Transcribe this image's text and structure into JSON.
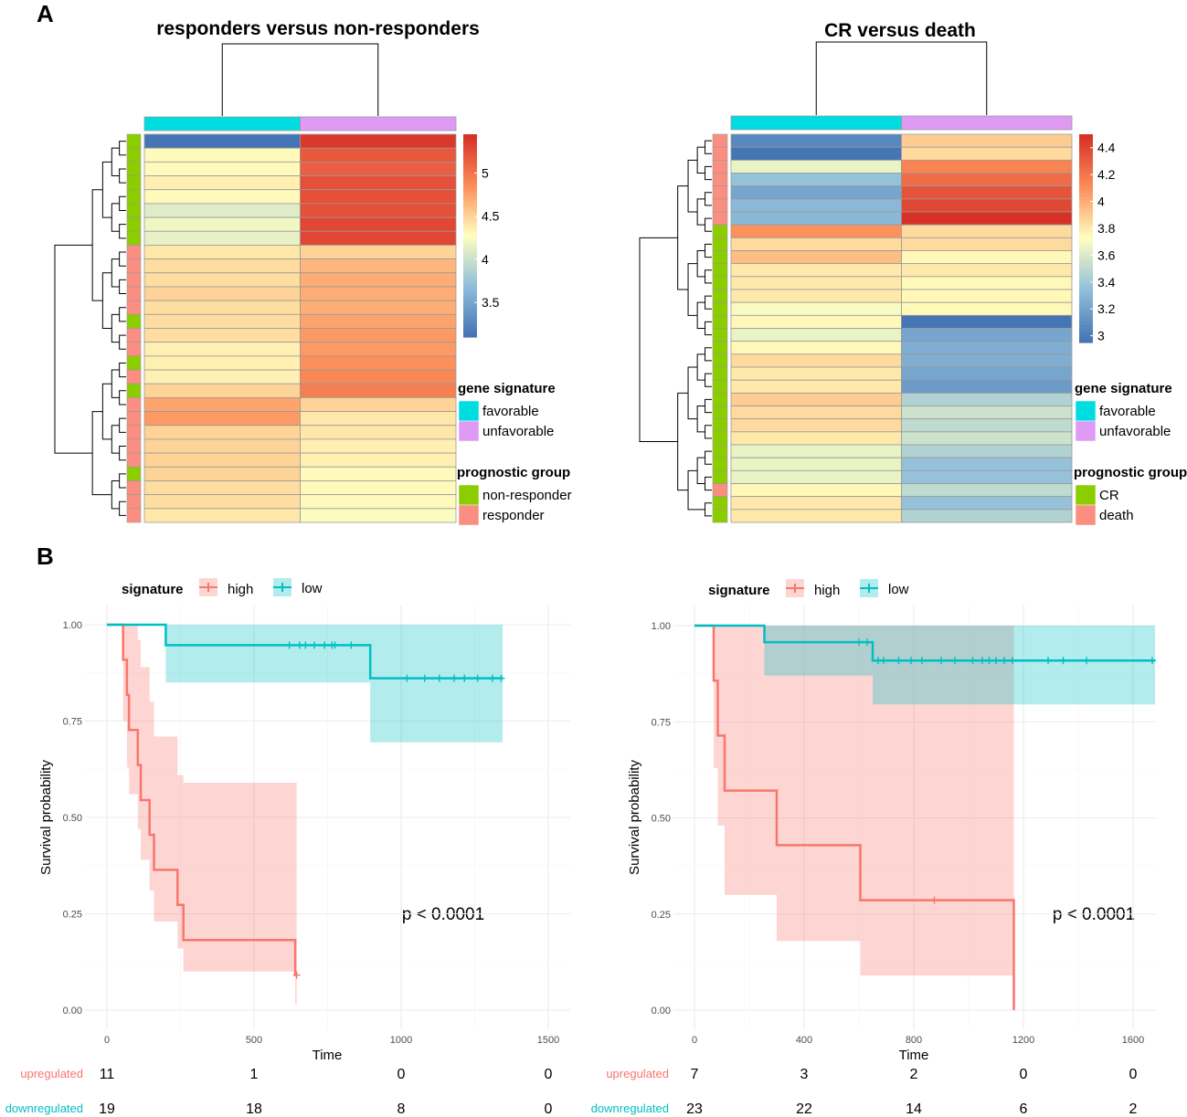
{
  "panel_labels": {
    "a": "A",
    "b": "B"
  },
  "colors": {
    "favorable": "#00dde0",
    "unfavorable": "#df9bf4",
    "non_responder": "#8ccd00",
    "responder": "#fa8e80",
    "cr": "#8ccd00",
    "death": "#fa8e80",
    "km_high": "#f8766d",
    "km_low": "#00bfc4",
    "upregulated": "#f8766d",
    "downregulated": "#00bfc4"
  },
  "heatmaps": [
    {
      "title": "responders versus non-responders",
      "columns": [
        "favorable",
        "unfavorable"
      ],
      "scale": {
        "min": 3.1,
        "max": 5.45,
        "ticks": [
          "5",
          "4.5",
          "4",
          "3.5"
        ],
        "tick_values": [
          5,
          4.5,
          4,
          3.5
        ]
      },
      "rows": [
        {
          "group": "non-responder",
          "values": [
            3.1,
            5.4
          ]
        },
        {
          "group": "non-responder",
          "values": [
            4.3,
            5.2
          ]
        },
        {
          "group": "non-responder",
          "values": [
            4.3,
            5.15
          ]
        },
        {
          "group": "non-responder",
          "values": [
            4.35,
            5.25
          ]
        },
        {
          "group": "non-responder",
          "values": [
            4.3,
            5.25
          ]
        },
        {
          "group": "non-responder",
          "values": [
            4.1,
            5.25
          ]
        },
        {
          "group": "non-responder",
          "values": [
            4.2,
            5.3
          ]
        },
        {
          "group": "non-responder",
          "values": [
            4.15,
            5.3
          ]
        },
        {
          "group": "responder",
          "values": [
            4.4,
            4.5
          ]
        },
        {
          "group": "responder",
          "values": [
            4.45,
            4.65
          ]
        },
        {
          "group": "responder",
          "values": [
            4.45,
            4.7
          ]
        },
        {
          "group": "responder",
          "values": [
            4.5,
            4.7
          ]
        },
        {
          "group": "responder",
          "values": [
            4.45,
            4.7
          ]
        },
        {
          "group": "non-responder",
          "values": [
            4.45,
            4.75
          ]
        },
        {
          "group": "responder",
          "values": [
            4.45,
            4.8
          ]
        },
        {
          "group": "responder",
          "values": [
            4.35,
            4.8
          ]
        },
        {
          "group": "non-responder",
          "values": [
            4.35,
            4.85
          ]
        },
        {
          "group": "responder",
          "values": [
            4.35,
            4.9
          ]
        },
        {
          "group": "non-responder",
          "values": [
            4.5,
            4.95
          ]
        },
        {
          "group": "responder",
          "values": [
            4.75,
            4.5
          ]
        },
        {
          "group": "responder",
          "values": [
            4.8,
            4.4
          ]
        },
        {
          "group": "responder",
          "values": [
            4.5,
            4.4
          ]
        },
        {
          "group": "responder",
          "values": [
            4.5,
            4.35
          ]
        },
        {
          "group": "responder",
          "values": [
            4.5,
            4.35
          ]
        },
        {
          "group": "non-responder",
          "values": [
            4.5,
            4.3
          ]
        },
        {
          "group": "responder",
          "values": [
            4.45,
            4.3
          ]
        },
        {
          "group": "responder",
          "values": [
            4.45,
            4.3
          ]
        },
        {
          "group": "responder",
          "values": [
            4.4,
            4.25
          ]
        }
      ],
      "legend": {
        "gene_title": "gene signature",
        "gene_items": [
          "favorable",
          "unfavorable"
        ],
        "group_title": "prognostic group",
        "group_items": [
          "non-responder",
          "responder"
        ]
      }
    },
    {
      "title": "CR versus death",
      "columns": [
        "favorable",
        "unfavorable"
      ],
      "scale": {
        "min": 2.95,
        "max": 4.5,
        "ticks": [
          "4.4",
          "4.2",
          "4",
          "3.8",
          "3.6",
          "3.4",
          "3.2",
          "3"
        ],
        "tick_values": [
          4.4,
          4.2,
          4.0,
          3.8,
          3.6,
          3.4,
          3.2,
          3.0
        ]
      },
      "rows": [
        {
          "group": "death",
          "values": [
            3.05,
            3.9
          ]
        },
        {
          "group": "death",
          "values": [
            2.95,
            3.85
          ]
        },
        {
          "group": "death",
          "values": [
            3.65,
            4.15
          ]
        },
        {
          "group": "death",
          "values": [
            3.35,
            4.25
          ]
        },
        {
          "group": "death",
          "values": [
            3.2,
            4.35
          ]
        },
        {
          "group": "death",
          "values": [
            3.3,
            4.4
          ]
        },
        {
          "group": "death",
          "values": [
            3.3,
            4.5
          ]
        },
        {
          "group": "CR",
          "values": [
            4.1,
            3.85
          ]
        },
        {
          "group": "CR",
          "values": [
            3.85,
            3.85
          ]
        },
        {
          "group": "CR",
          "values": [
            3.95,
            3.75
          ]
        },
        {
          "group": "CR",
          "values": [
            3.8,
            3.8
          ]
        },
        {
          "group": "CR",
          "values": [
            3.8,
            3.75
          ]
        },
        {
          "group": "CR",
          "values": [
            3.8,
            3.75
          ]
        },
        {
          "group": "CR",
          "values": [
            3.7,
            3.75
          ]
        },
        {
          "group": "CR",
          "values": [
            3.75,
            2.95
          ]
        },
        {
          "group": "CR",
          "values": [
            3.65,
            3.2
          ]
        },
        {
          "group": "CR",
          "values": [
            3.75,
            3.25
          ]
        },
        {
          "group": "CR",
          "values": [
            3.85,
            3.25
          ]
        },
        {
          "group": "CR",
          "values": [
            3.8,
            3.2
          ]
        },
        {
          "group": "CR",
          "values": [
            3.8,
            3.15
          ]
        },
        {
          "group": "CR",
          "values": [
            3.9,
            3.45
          ]
        },
        {
          "group": "CR",
          "values": [
            3.85,
            3.55
          ]
        },
        {
          "group": "CR",
          "values": [
            3.85,
            3.5
          ]
        },
        {
          "group": "CR",
          "values": [
            3.8,
            3.55
          ]
        },
        {
          "group": "CR",
          "values": [
            3.65,
            3.45
          ]
        },
        {
          "group": "CR",
          "values": [
            3.65,
            3.35
          ]
        },
        {
          "group": "CR",
          "values": [
            3.65,
            3.35
          ]
        },
        {
          "group": "death",
          "values": [
            3.75,
            3.5
          ]
        },
        {
          "group": "CR",
          "values": [
            3.8,
            3.35
          ]
        },
        {
          "group": "CR",
          "values": [
            3.8,
            3.45
          ]
        }
      ],
      "legend": {
        "gene_title": "gene signature",
        "gene_items": [
          "favorable",
          "unfavorable"
        ],
        "group_title": "prognostic group",
        "group_items": [
          "CR",
          "death"
        ]
      }
    }
  ],
  "chart_data": [
    {
      "type": "line",
      "title": "",
      "xlabel": "Time",
      "ylabel": "Survival probability",
      "xlim": [
        0,
        1575
      ],
      "ylim": [
        0,
        1
      ],
      "x_ticks": [
        0,
        500,
        1000,
        1500
      ],
      "y_ticks": [
        "0.00",
        "0.25",
        "0.50",
        "0.75",
        "1.00"
      ],
      "y_tick_values": [
        0,
        0.25,
        0.5,
        0.75,
        1
      ],
      "legend_title": "signature",
      "legend_items": [
        "high",
        "low"
      ],
      "p_value": "p < 0.0001",
      "series": [
        {
          "name": "high",
          "x": [
            0,
            55,
            68,
            75,
            105,
            115,
            145,
            160,
            240,
            260,
            640
          ],
          "y": [
            1,
            0.909,
            0.818,
            0.727,
            0.636,
            0.545,
            0.455,
            0.364,
            0.273,
            0.182,
            0.091
          ],
          "upper": [
            1,
            1,
            1,
            1,
            0.96,
            0.89,
            0.8,
            0.71,
            0.61,
            0.59,
            0.59
          ],
          "lower": [
            1,
            0.75,
            0.63,
            0.56,
            0.47,
            0.39,
            0.31,
            0.23,
            0.16,
            0.1,
            0.015
          ],
          "censor_x": [
            645
          ],
          "censor_y": [
            0.091
          ]
        },
        {
          "name": "low",
          "x": [
            0,
            200,
            895,
            1345
          ],
          "y": [
            1,
            0.947,
            0.861,
            0.861
          ],
          "upper": [
            1,
            1,
            1,
            1
          ],
          "lower": [
            1,
            0.85,
            0.695,
            0.695
          ],
          "censor_x": [
            620,
            655,
            675,
            705,
            740,
            765,
            775,
            830,
            1020,
            1080,
            1130,
            1180,
            1215,
            1260,
            1310,
            1340
          ],
          "censor_y": [
            0.947,
            0.947,
            0.947,
            0.947,
            0.947,
            0.947,
            0.947,
            0.947,
            0.861,
            0.861,
            0.861,
            0.861,
            0.861,
            0.861,
            0.861,
            0.861
          ]
        }
      ],
      "risk_table": {
        "rows": [
          "upregulated",
          "downregulated"
        ],
        "times": [
          0,
          500,
          1000,
          1500
        ],
        "values": [
          [
            "11",
            "1",
            "0",
            "0"
          ],
          [
            "19",
            "18",
            "8",
            "0"
          ]
        ]
      }
    },
    {
      "type": "line",
      "title": "",
      "xlabel": "Time",
      "ylabel": "Survival probability",
      "xlim": [
        0,
        1680
      ],
      "ylim": [
        0,
        1
      ],
      "x_ticks": [
        0,
        400,
        800,
        1200,
        1600
      ],
      "y_ticks": [
        "0.00",
        "0.25",
        "0.50",
        "0.75",
        "1.00"
      ],
      "y_tick_values": [
        0,
        0.25,
        0.5,
        0.75,
        1
      ],
      "legend_title": "signature",
      "legend_items": [
        "high",
        "low"
      ],
      "p_value": "p < 0.0001",
      "series": [
        {
          "name": "high",
          "x": [
            0,
            70,
            85,
            110,
            300,
            605,
            1165
          ],
          "y": [
            1,
            0.857,
            0.714,
            0.571,
            0.429,
            0.286,
            0
          ],
          "upper": [
            1,
            1,
            1,
            1,
            1,
            1,
            1
          ],
          "lower": [
            1,
            0.63,
            0.48,
            0.3,
            0.18,
            0.09,
            0.09
          ],
          "censor_x": [
            875
          ],
          "censor_y": [
            0.286
          ]
        },
        {
          "name": "low",
          "x": [
            0,
            255,
            605,
            650,
            1680
          ],
          "y": [
            1,
            0.957,
            0.957,
            0.909,
            0.909
          ],
          "upper": [
            1,
            1,
            1,
            1,
            1
          ],
          "lower": [
            1,
            0.87,
            0.87,
            0.795,
            0.795
          ],
          "censor_x": [
            600,
            630,
            670,
            690,
            745,
            790,
            830,
            900,
            950,
            1015,
            1050,
            1075,
            1100,
            1130,
            1160,
            1290,
            1345,
            1430,
            1670
          ],
          "censor_y": [
            0.957,
            0.957,
            0.909,
            0.909,
            0.909,
            0.909,
            0.909,
            0.909,
            0.909,
            0.909,
            0.909,
            0.909,
            0.909,
            0.909,
            0.909,
            0.909,
            0.909,
            0.909,
            0.909
          ]
        }
      ],
      "risk_table": {
        "rows": [
          "upregulated",
          "downregulated"
        ],
        "times": [
          0,
          400,
          800,
          1200,
          1600
        ],
        "values": [
          [
            "7",
            "3",
            "2",
            "0",
            "0"
          ],
          [
            "23",
            "22",
            "14",
            "6",
            "2"
          ]
        ]
      }
    }
  ]
}
